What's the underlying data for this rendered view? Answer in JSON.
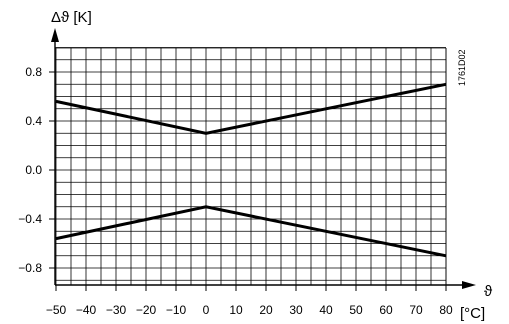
{
  "chart_data": {
    "type": "line",
    "ylabel": "Δϑ [K]",
    "xlabel": "ϑ",
    "x_unit": "[°C]",
    "figure_code": "1761D02",
    "xlim": [
      -50,
      80
    ],
    "ylim": [
      -1.0,
      1.0
    ],
    "grid": true,
    "x_ticks": [
      -50,
      -40,
      -30,
      -20,
      -10,
      0,
      10,
      20,
      30,
      40,
      50,
      60,
      70,
      80
    ],
    "x_tick_labels": [
      "−50",
      "−40",
      "−30",
      "−20",
      "−10",
      "0",
      "10",
      "20",
      "30",
      "40",
      "50",
      "60",
      "70",
      "80"
    ],
    "y_ticks": [
      0.8,
      0.4,
      0.0,
      -0.4,
      -0.8
    ],
    "y_tick_labels": [
      "0.8",
      "0.4",
      "0.0",
      "−0.4",
      "−0.8"
    ],
    "series": [
      {
        "x": [
          -50,
          0,
          80
        ],
        "y": [
          0.56,
          0.3,
          0.7
        ]
      },
      {
        "x": [
          -50,
          0,
          80
        ],
        "y": [
          -0.56,
          -0.3,
          -0.7
        ]
      }
    ],
    "colors": {
      "line": "#000000",
      "grid": "#000000",
      "background": "#ffffff"
    }
  }
}
